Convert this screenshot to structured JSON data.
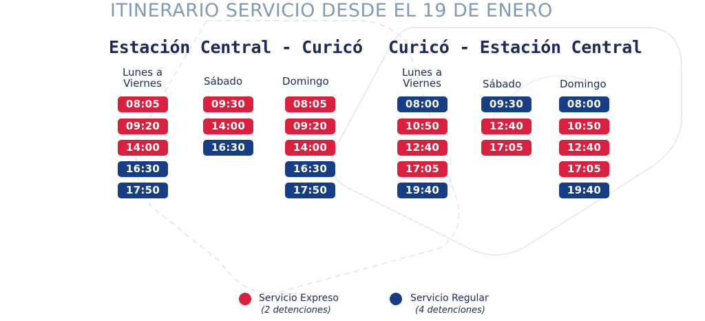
{
  "title": "ITINERARIO SERVICIO DESDE EL 19 DE ENERO",
  "colors": {
    "express": "#d9203f",
    "regular": "#173e85",
    "title": "#7f9ab8",
    "text": "#1c2a55"
  },
  "routes": [
    {
      "name": "Estación Central - Curicó",
      "days": {
        "weekdays": {
          "label_line1": "Lunes a",
          "label_line2": "Viernes",
          "times": [
            {
              "time": "08:05",
              "service": "express"
            },
            {
              "time": "09:20",
              "service": "express"
            },
            {
              "time": "14:00",
              "service": "express"
            },
            {
              "time": "16:30",
              "service": "regular"
            },
            {
              "time": "17:50",
              "service": "regular"
            }
          ]
        },
        "saturday": {
          "label": "Sábado",
          "times": [
            {
              "time": "09:30",
              "service": "express"
            },
            {
              "time": "14:00",
              "service": "express"
            },
            {
              "time": "16:30",
              "service": "regular"
            }
          ]
        },
        "sunday": {
          "label": "Domingo",
          "times": [
            {
              "time": "08:05",
              "service": "express"
            },
            {
              "time": "09:20",
              "service": "express"
            },
            {
              "time": "14:00",
              "service": "express"
            },
            {
              "time": "16:30",
              "service": "regular"
            },
            {
              "time": "17:50",
              "service": "regular"
            }
          ]
        }
      }
    },
    {
      "name": "Curicó - Estación Central",
      "days": {
        "weekdays": {
          "label_line1": "Lunes a",
          "label_line2": "Viernes",
          "times": [
            {
              "time": "08:00",
              "service": "regular"
            },
            {
              "time": "10:50",
              "service": "express"
            },
            {
              "time": "12:40",
              "service": "express"
            },
            {
              "time": "17:05",
              "service": "express"
            },
            {
              "time": "19:40",
              "service": "regular"
            }
          ]
        },
        "saturday": {
          "label": "Sábado",
          "times": [
            {
              "time": "09:30",
              "service": "regular"
            },
            {
              "time": "12:40",
              "service": "express"
            },
            {
              "time": "17:05",
              "service": "express"
            }
          ]
        },
        "sunday": {
          "label": "Domingo",
          "times": [
            {
              "time": "08:00",
              "service": "regular"
            },
            {
              "time": "10:50",
              "service": "express"
            },
            {
              "time": "12:40",
              "service": "express"
            },
            {
              "time": "17:05",
              "service": "express"
            },
            {
              "time": "19:40",
              "service": "regular"
            }
          ]
        }
      }
    }
  ],
  "legend": {
    "express": {
      "label": "Servicio Expreso",
      "sub": "(2 detenciones)"
    },
    "regular": {
      "label": "Servicio Regular",
      "sub": "(4 detenciones)"
    }
  }
}
